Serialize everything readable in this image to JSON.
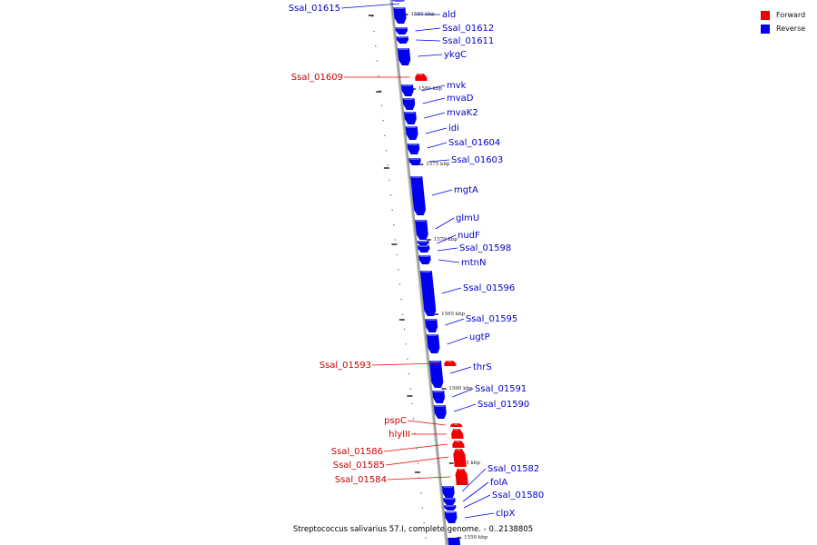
{
  "caption": "Streptococcus salivarius 57.I, complete genome. - 0..2138805",
  "legend": [
    {
      "label": "Forward",
      "color": "#ee0000"
    },
    {
      "label": "Reverse",
      "color": "#0000ee"
    }
  ],
  "colors": {
    "forward": "#ee0000",
    "reverse": "#0000ee",
    "backbone": "#888888"
  },
  "ticks": [
    "1585 kbp",
    "1580 kbp",
    "1575 kbp",
    "1570 kbp",
    "1565 kbp",
    "1560 kbp",
    "1555 kbp",
    "1550 kbp"
  ],
  "genes": [
    {
      "name": "Ssal_01615",
      "strand": "reverse"
    },
    {
      "name": "ald",
      "strand": "reverse"
    },
    {
      "name": "Ssal_01612",
      "strand": "reverse"
    },
    {
      "name": "Ssal_01611",
      "strand": "reverse"
    },
    {
      "name": "ykgC",
      "strand": "reverse"
    },
    {
      "name": "Ssal_01609",
      "strand": "forward"
    },
    {
      "name": "mvk",
      "strand": "reverse"
    },
    {
      "name": "mvaD",
      "strand": "reverse"
    },
    {
      "name": "mvaK2",
      "strand": "reverse"
    },
    {
      "name": "idi",
      "strand": "reverse"
    },
    {
      "name": "Ssal_01604",
      "strand": "reverse"
    },
    {
      "name": "Ssal_01603",
      "strand": "reverse"
    },
    {
      "name": "mgtA",
      "strand": "reverse"
    },
    {
      "name": "glmU",
      "strand": "reverse"
    },
    {
      "name": "nudF",
      "strand": "reverse"
    },
    {
      "name": "Ssal_01598",
      "strand": "reverse"
    },
    {
      "name": "mtnN",
      "strand": "reverse"
    },
    {
      "name": "Ssal_01596",
      "strand": "reverse"
    },
    {
      "name": "Ssal_01595",
      "strand": "reverse"
    },
    {
      "name": "ugtP",
      "strand": "reverse"
    },
    {
      "name": "Ssal_01593",
      "strand": "forward"
    },
    {
      "name": "thrS",
      "strand": "reverse"
    },
    {
      "name": "Ssal_01591",
      "strand": "reverse"
    },
    {
      "name": "Ssal_01590",
      "strand": "reverse"
    },
    {
      "name": "pspC",
      "strand": "forward"
    },
    {
      "name": "hlyIII",
      "strand": "forward"
    },
    {
      "name": "Ssal_01586",
      "strand": "forward"
    },
    {
      "name": "Ssal_01585",
      "strand": "forward"
    },
    {
      "name": "Ssal_01584",
      "strand": "forward"
    },
    {
      "name": "Ssal_01582",
      "strand": "reverse"
    },
    {
      "name": "folA",
      "strand": "reverse"
    },
    {
      "name": "Ssal_01580",
      "strand": "reverse"
    },
    {
      "name": "clpX",
      "strand": "reverse"
    }
  ]
}
